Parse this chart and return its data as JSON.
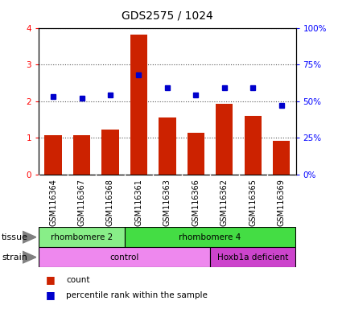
{
  "title": "GDS2575 / 1024",
  "samples": [
    "GSM116364",
    "GSM116367",
    "GSM116368",
    "GSM116361",
    "GSM116363",
    "GSM116366",
    "GSM116362",
    "GSM116365",
    "GSM116369"
  ],
  "counts": [
    1.08,
    1.08,
    1.22,
    3.82,
    1.55,
    1.13,
    1.92,
    1.6,
    0.92
  ],
  "percentiles_pct": [
    53,
    52,
    54,
    68,
    59,
    54,
    59,
    59,
    47
  ],
  "bar_color": "#cc2200",
  "dot_color": "#0000cc",
  "ylim_left": [
    0,
    4
  ],
  "ylim_right": [
    0,
    100
  ],
  "yticks_left": [
    0,
    1,
    2,
    3,
    4
  ],
  "yticks_right": [
    0,
    25,
    50,
    75,
    100
  ],
  "ytick_labels_right": [
    "0%",
    "25%",
    "50%",
    "75%",
    "100%"
  ],
  "tissue_groups": [
    {
      "label": "rhombomere 2",
      "start": 0,
      "end": 3,
      "color": "#88ee88"
    },
    {
      "label": "rhombomere 4",
      "start": 3,
      "end": 9,
      "color": "#44dd44"
    }
  ],
  "strain_groups": [
    {
      "label": "control",
      "start": 0,
      "end": 6,
      "color": "#ee88ee"
    },
    {
      "label": "Hoxb1a deficient",
      "start": 6,
      "end": 9,
      "color": "#cc44cc"
    }
  ],
  "legend_count_label": "count",
  "legend_pct_label": "percentile rank within the sample",
  "xticklabel_bg": "#cccccc",
  "grid_color": "#555555",
  "title_fontsize": 10,
  "tick_fontsize": 7.5,
  "label_fontsize": 8
}
